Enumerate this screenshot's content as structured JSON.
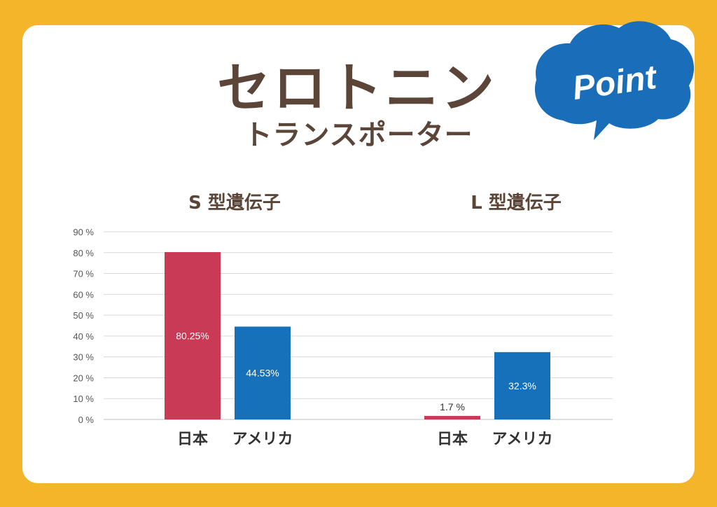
{
  "header": {
    "title": "セロトニン",
    "subtitle": "トランスポーター",
    "badge_label": "Point",
    "badge_color": "#1A6DB8"
  },
  "colors": {
    "japan": "#C93A56",
    "america": "#1771BA",
    "frame": "#F5B52A",
    "title_text": "#5B4538"
  },
  "chart_data": [
    {
      "type": "bar",
      "title": "S 型遺伝子",
      "categories": [
        "日本",
        "アメリカ"
      ],
      "values": [
        80.25,
        44.53
      ],
      "value_labels": [
        "80.25%",
        "44.53%"
      ],
      "ylim": [
        0,
        90
      ],
      "yticks": [
        "0 %",
        "10 %",
        "20 %",
        "30 %",
        "40 %",
        "50 %",
        "60 %",
        "70 %",
        "80 %",
        "90 %"
      ],
      "grid": true,
      "xlabel": "",
      "ylabel": ""
    },
    {
      "type": "bar",
      "title": "L 型遺伝子",
      "categories": [
        "日本",
        "アメリカ"
      ],
      "values": [
        1.7,
        32.3
      ],
      "value_labels": [
        "1.7 %",
        "32.3%"
      ],
      "ylim": [
        0,
        90
      ],
      "grid": true,
      "xlabel": "",
      "ylabel": ""
    }
  ]
}
